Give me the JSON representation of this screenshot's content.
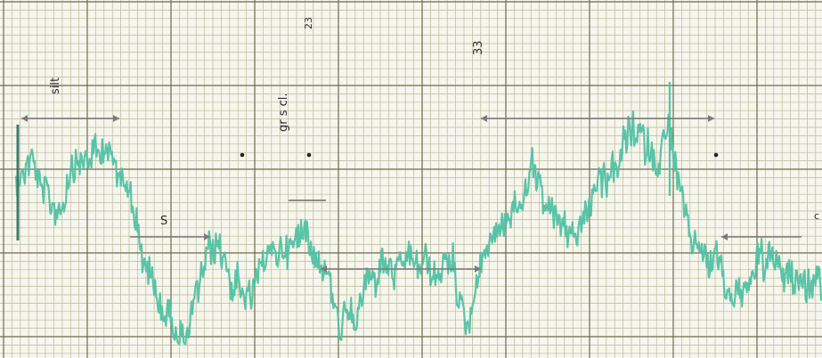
{
  "colors": {
    "paper": "#f6f6ee",
    "grid_minor": "#b9b998",
    "grid_major": "#6f6a4a",
    "trace": "#4fc1a2",
    "annotation_ink": "#2f2f2f",
    "arrow_ink": "#7a7a7a"
  },
  "annotations": {
    "silt": "silt",
    "sand_mark": "S",
    "gr_s_cl": "gr s cl.",
    "depth_23": "23",
    "depth_33": "33",
    "mark_c": "c"
  },
  "trace_profile": [
    [
      0.0,
      0.5
    ],
    [
      0.02,
      0.42
    ],
    [
      0.05,
      0.6
    ],
    [
      0.08,
      0.45
    ],
    [
      0.11,
      0.44
    ],
    [
      0.14,
      0.5
    ],
    [
      0.16,
      0.75
    ],
    [
      0.18,
      0.86
    ],
    [
      0.21,
      0.92
    ],
    [
      0.23,
      0.8
    ],
    [
      0.25,
      0.7
    ],
    [
      0.28,
      0.82
    ],
    [
      0.31,
      0.72
    ],
    [
      0.34,
      0.68
    ],
    [
      0.36,
      0.62
    ],
    [
      0.38,
      0.7
    ],
    [
      0.4,
      0.88
    ],
    [
      0.42,
      0.82
    ],
    [
      0.45,
      0.8
    ],
    [
      0.48,
      0.76
    ],
    [
      0.51,
      0.74
    ],
    [
      0.54,
      0.78
    ],
    [
      0.56,
      0.86
    ],
    [
      0.58,
      0.72
    ],
    [
      0.61,
      0.6
    ],
    [
      0.64,
      0.52
    ],
    [
      0.67,
      0.58
    ],
    [
      0.7,
      0.66
    ],
    [
      0.73,
      0.48
    ],
    [
      0.76,
      0.4
    ],
    [
      0.79,
      0.44
    ],
    [
      0.81,
      0.36
    ],
    [
      0.82,
      0.5
    ],
    [
      0.84,
      0.62
    ],
    [
      0.86,
      0.68
    ],
    [
      0.88,
      0.76
    ],
    [
      0.9,
      0.84
    ],
    [
      0.92,
      0.72
    ],
    [
      0.95,
      0.78
    ],
    [
      0.97,
      0.76
    ],
    [
      1.0,
      0.8
    ]
  ]
}
